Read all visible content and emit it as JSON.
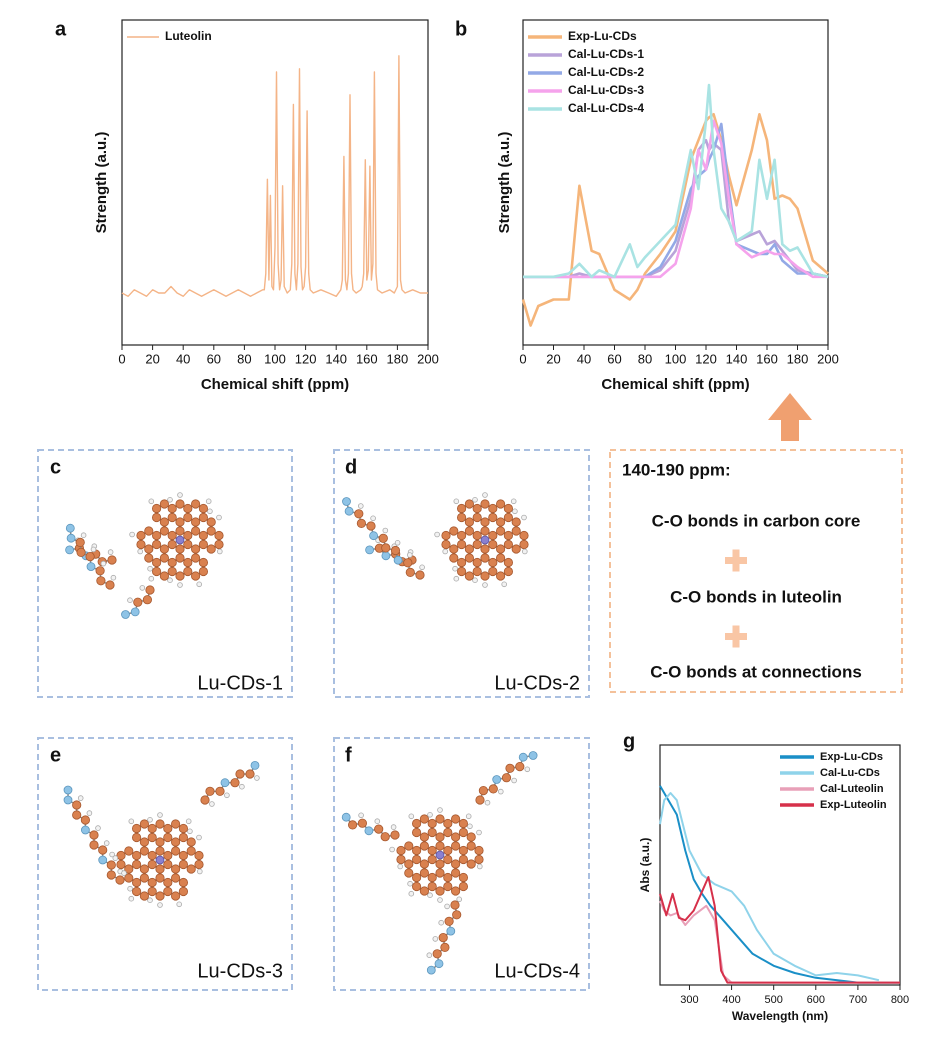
{
  "chart_data": [
    {
      "type": "line",
      "panel_label": "a",
      "xlabel": "Chemical shift (ppm)",
      "ylabel": "Strength (a.u.)",
      "xlim": [
        0,
        200
      ],
      "xticks": [
        0,
        20,
        40,
        60,
        80,
        100,
        120,
        140,
        160,
        180,
        200
      ],
      "ylim": [
        0,
        100
      ],
      "legend": "upper left",
      "x": [
        0,
        4,
        8,
        12,
        16,
        20,
        24,
        28,
        32,
        36,
        40,
        44,
        48,
        52,
        56,
        60,
        64,
        68,
        72,
        76,
        80,
        84,
        88,
        92,
        93,
        94,
        95,
        96,
        97,
        98,
        99,
        100,
        101,
        102,
        103,
        104,
        105,
        106,
        108,
        110,
        111,
        112,
        113,
        114,
        115,
        116,
        117,
        118,
        119,
        120,
        121,
        122,
        123,
        125,
        130,
        135,
        140,
        143,
        144,
        145,
        146,
        147,
        148,
        149,
        150,
        151,
        153,
        156,
        157,
        158,
        159,
        160,
        161,
        162,
        163,
        164,
        165,
        166,
        167,
        170,
        175,
        178,
        180,
        181,
        182,
        183,
        185,
        190,
        195,
        200
      ],
      "series": [
        {
          "name": "Luteolin",
          "color": "#f4b487",
          "values": [
            16,
            15,
            17,
            16,
            15,
            17,
            16,
            16,
            18,
            16,
            15,
            17,
            16,
            15,
            16,
            17,
            16,
            15,
            16,
            17,
            16,
            15,
            16,
            17,
            17,
            22,
            51,
            20,
            46,
            18,
            17,
            30,
            84,
            25,
            17,
            20,
            49,
            18,
            16,
            17,
            25,
            74,
            22,
            17,
            25,
            85,
            24,
            17,
            18,
            24,
            72,
            22,
            17,
            16,
            17,
            16,
            15,
            17,
            20,
            58,
            20,
            17,
            22,
            77,
            22,
            17,
            16,
            17,
            18,
            22,
            57,
            20,
            23,
            55,
            20,
            25,
            84,
            22,
            17,
            16,
            17,
            16,
            18,
            89,
            20,
            17,
            16,
            17,
            16,
            16
          ]
        }
      ]
    },
    {
      "type": "line",
      "panel_label": "b",
      "xlabel": "Chemical shift (ppm)",
      "ylabel": "Strength (a.u.)",
      "xlim": [
        0,
        200
      ],
      "xticks": [
        0,
        20,
        40,
        60,
        80,
        100,
        120,
        140,
        160,
        180,
        200
      ],
      "ylim": [
        0,
        100
      ],
      "legend": "upper left",
      "x": [
        0,
        5,
        10,
        20,
        30,
        37,
        45,
        50,
        60,
        70,
        75,
        80,
        90,
        100,
        110,
        115,
        120,
        122,
        125,
        130,
        135,
        140,
        150,
        155,
        160,
        165,
        170,
        175,
        180,
        190,
        200
      ],
      "series": [
        {
          "name": "Exp-Lu-CDs",
          "color": "#f5b57a",
          "values": [
            14,
            6,
            12,
            14,
            14,
            49,
            29,
            28,
            17,
            14,
            17,
            22,
            28,
            35,
            57,
            63,
            69,
            70,
            71,
            63,
            52,
            43,
            60,
            71,
            63,
            45,
            46,
            45,
            42,
            26,
            22
          ]
        },
        {
          "name": "Cal-Lu-CDs-1",
          "color": "#b9a3d9",
          "values": [
            21,
            21,
            21,
            21,
            21,
            22,
            21,
            21,
            21,
            21,
            21,
            21,
            23,
            29,
            45,
            60,
            63,
            60,
            62,
            60,
            38,
            32,
            34,
            35,
            31,
            32,
            29,
            26,
            23,
            22,
            21
          ]
        },
        {
          "name": "Cal-Lu-CDs-2",
          "color": "#93a9e6",
          "values": [
            21,
            21,
            21,
            21,
            21,
            21,
            21,
            21,
            21,
            21,
            21,
            21,
            24,
            32,
            48,
            52,
            54,
            57,
            60,
            68,
            48,
            31,
            29,
            28,
            28,
            31,
            26,
            24,
            22,
            22,
            21
          ]
        },
        {
          "name": "Cal-Lu-CDs-3",
          "color": "#f5a3ec",
          "values": [
            21,
            21,
            21,
            21,
            21,
            21,
            21,
            21,
            21,
            21,
            21,
            21,
            21,
            25,
            42,
            60,
            54,
            60,
            69,
            62,
            45,
            31,
            27,
            28,
            29,
            28,
            28,
            26,
            24,
            21,
            21
          ]
        },
        {
          "name": "Cal-Lu-CDs-4",
          "color": "#a9e3e3",
          "values": [
            21,
            21,
            21,
            21,
            22,
            25,
            21,
            23,
            21,
            31,
            24,
            27,
            32,
            37,
            60,
            48,
            69,
            80,
            60,
            42,
            38,
            32,
            35,
            57,
            45,
            57,
            31,
            29,
            30,
            22,
            21
          ]
        }
      ]
    },
    {
      "type": "line",
      "panel_label": "g",
      "xlabel": "Wavelength (nm)",
      "ylabel": "Abs (a.u.)",
      "xlim": [
        230,
        800
      ],
      "xticks": [
        300,
        400,
        500,
        600,
        700,
        800
      ],
      "ylim": [
        0,
        100
      ],
      "legend": "upper right",
      "series": [
        {
          "name": "Exp-Lu-CDs",
          "color": "#1a8fc7",
          "x": [
            230,
            250,
            270,
            290,
            310,
            330,
            350,
            380,
            400,
            450,
            500,
            550,
            600,
            700,
            800
          ],
          "values": [
            83,
            77,
            71,
            56,
            44,
            38,
            33,
            27,
            23,
            13,
            8,
            5,
            3,
            1,
            1
          ]
        },
        {
          "name": "Cal-Lu-CDs",
          "color": "#8fd3ea",
          "x": [
            230,
            240,
            255,
            270,
            300,
            330,
            360,
            400,
            430,
            460,
            500,
            550,
            600,
            650,
            700,
            750
          ],
          "values": [
            67,
            77,
            80,
            77,
            56,
            46,
            42,
            39,
            33,
            23,
            13,
            8,
            4,
            5,
            4,
            2
          ]
        },
        {
          "name": "Cal-Luteolin",
          "color": "#e8a0b8",
          "x": [
            230,
            240,
            255,
            270,
            290,
            310,
            340,
            360,
            380,
            400,
            500,
            800
          ],
          "values": [
            35,
            31,
            29,
            30,
            25,
            29,
            33,
            27,
            4,
            1,
            1,
            1
          ]
        },
        {
          "name": "Exp-Luteolin",
          "color": "#d6304a",
          "x": [
            230,
            245,
            260,
            275,
            290,
            310,
            345,
            360,
            375,
            390,
            500,
            800
          ],
          "values": [
            38,
            29,
            38,
            28,
            27,
            31,
            45,
            33,
            6,
            1,
            1,
            1
          ]
        }
      ]
    }
  ],
  "structures": [
    {
      "letter": "c",
      "label": "Lu-CDs-1"
    },
    {
      "letter": "d",
      "label": "Lu-CDs-2"
    },
    {
      "letter": "e",
      "label": "Lu-CDs-3"
    },
    {
      "letter": "f",
      "label": "Lu-CDs-4"
    }
  ],
  "note": {
    "title": "140-190 ppm:",
    "lines": [
      "C-O bonds in carbon core",
      "C-O bonds in luteolin",
      "C-O bonds at connections"
    ]
  }
}
